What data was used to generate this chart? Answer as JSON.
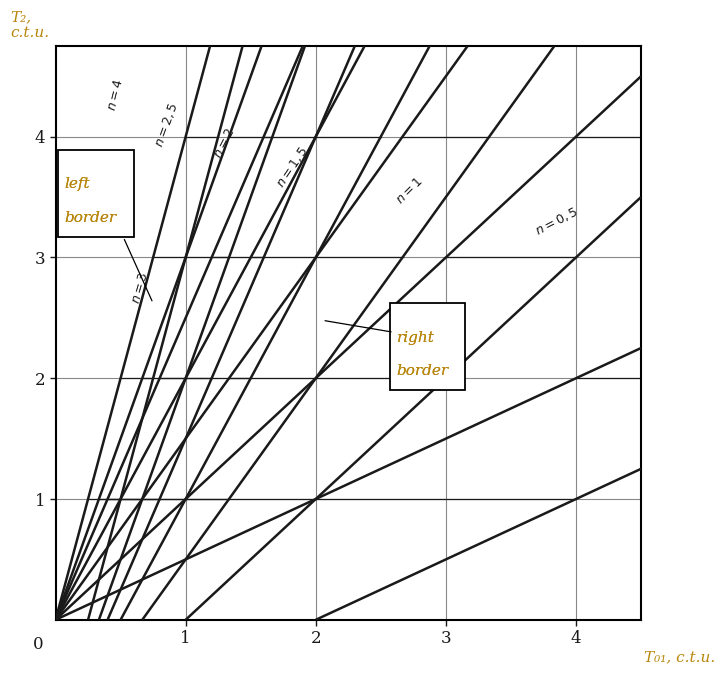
{
  "xlim": [
    0,
    4.5
  ],
  "ylim": [
    0,
    4.75
  ],
  "xlabel": "T₀₁, c.t.u.",
  "ylabel": "T₂,\nc.t.u.",
  "xticks": [
    1,
    2,
    3,
    4
  ],
  "yticks": [
    1,
    2,
    3,
    4
  ],
  "n_values": [
    4,
    3,
    2.5,
    2,
    1.5,
    1,
    0.5
  ],
  "n_label_positions": {
    "4": [
      0.46,
      4.35,
      76
    ],
    "3": [
      0.65,
      2.75,
      74
    ],
    "2.5": [
      0.85,
      4.1,
      70
    ],
    "2": [
      1.3,
      3.95,
      63
    ],
    "1.5": [
      1.82,
      3.75,
      56
    ],
    "1": [
      2.72,
      3.55,
      45
    ],
    "0.5": [
      3.85,
      3.3,
      27
    ]
  },
  "left_border_label_line1": "left",
  "left_border_label_line2": "border",
  "right_border_label_line1": "right",
  "right_border_label_line2": "border",
  "bg_color": "#ffffff",
  "line_color": "#1a1a1a",
  "label_color_dark": "#1a1a1a",
  "label_color_orange": "#b8860b",
  "grid_color": "#888888",
  "tick_color": "#1a1a1a"
}
